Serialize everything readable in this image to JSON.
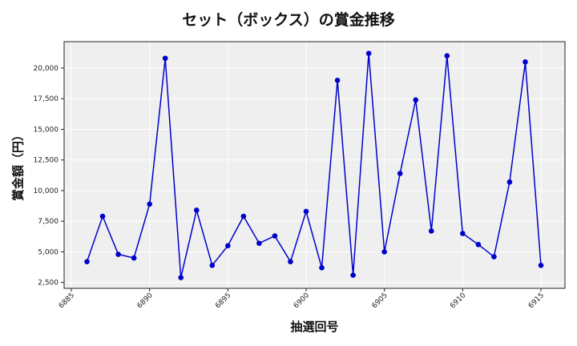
{
  "chart_data": {
    "type": "line",
    "title": "セット（ボックス）の賞金推移",
    "xlabel": "抽選回号",
    "ylabel": "賞金額（円）",
    "x": [
      6886,
      6887,
      6888,
      6889,
      6890,
      6891,
      6892,
      6893,
      6894,
      6895,
      6896,
      6897,
      6898,
      6899,
      6900,
      6901,
      6902,
      6903,
      6904,
      6905,
      6906,
      6907,
      6908,
      6909,
      6910,
      6911,
      6912,
      6913,
      6914,
      6915
    ],
    "series": [
      {
        "name": "セット（ボックス）",
        "color": "#0000cc",
        "values": [
          4200,
          7900,
          4800,
          4500,
          8900,
          20800,
          2900,
          8400,
          3900,
          5500,
          7900,
          5700,
          6300,
          4200,
          8300,
          3700,
          19000,
          3100,
          21200,
          5000,
          11400,
          17400,
          6700,
          21000,
          6500,
          5600,
          4600,
          10700,
          20500,
          3900
        ]
      }
    ],
    "xticks": [
      6885,
      6890,
      6895,
      6900,
      6905,
      6910,
      6915
    ],
    "yticks": [
      2500,
      5000,
      7500,
      10000,
      12500,
      15000,
      17500,
      20000
    ],
    "ytick_labels": [
      "2,500",
      "5,000",
      "7,500",
      "10,000",
      "12,500",
      "15,000",
      "17,500",
      "20,000"
    ],
    "xlim": [
      6883.5,
      6916.5
    ],
    "ylim": [
      1900,
      21900
    ],
    "grid": true,
    "legend": "none",
    "background": "#efefef"
  }
}
